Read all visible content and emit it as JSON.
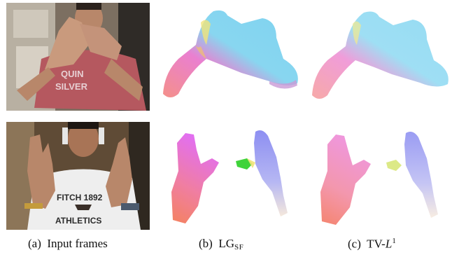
{
  "figure": {
    "panels": [
      {
        "id": "a",
        "caption_label": "(a)",
        "caption_text": "Input frames",
        "rows": [
          {
            "kind": "photo",
            "shirt_text": [
              "QUIN",
              "SILVER"
            ]
          },
          {
            "kind": "photo",
            "shirt_text": [
              "FITCH 1892",
              "ATHLETICS"
            ]
          }
        ]
      },
      {
        "id": "b",
        "caption_label": "(b)",
        "caption_text": "LG",
        "caption_subscript": "SF",
        "rows": [
          {
            "kind": "optical-flow"
          },
          {
            "kind": "optical-flow"
          }
        ]
      },
      {
        "id": "c",
        "caption_label": "(c)",
        "caption_text": "TV-",
        "caption_math": "L",
        "caption_superscript": "1",
        "rows": [
          {
            "kind": "optical-flow"
          },
          {
            "kind": "optical-flow"
          }
        ]
      }
    ],
    "flow_colors": {
      "cyan": "#7ed3ee",
      "pink": "#f27fb0",
      "magenta": "#e76df0",
      "orange": "#f48a66",
      "blue": "#8d8ff2",
      "yellow": "#f1e37a",
      "green": "#39d139"
    }
  }
}
